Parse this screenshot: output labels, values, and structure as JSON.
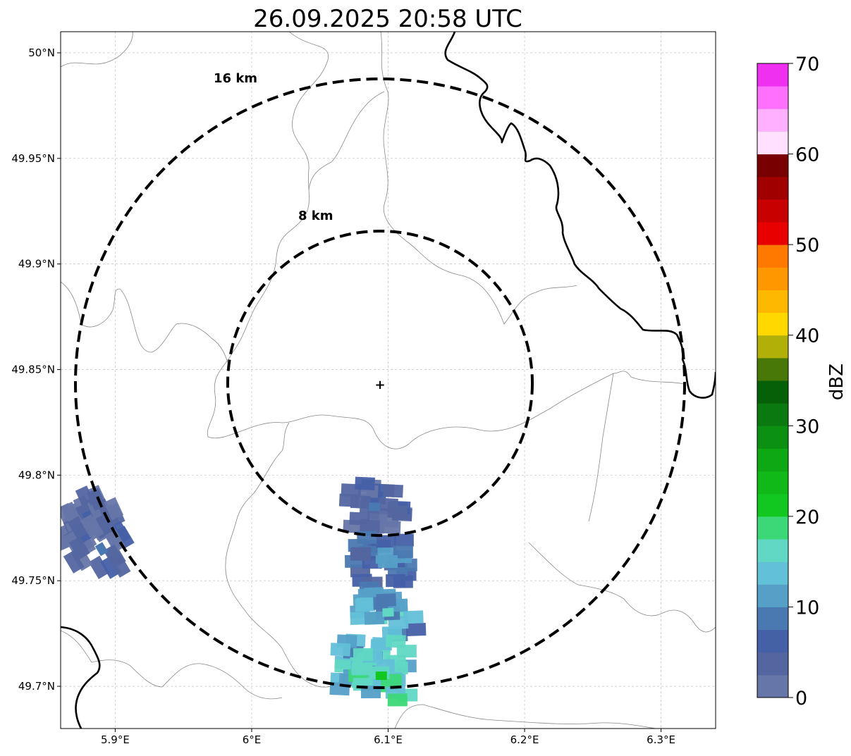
{
  "title": "26.09.2025 20:58 UTC",
  "map": {
    "lon_range": [
      5.86,
      6.34
    ],
    "lat_range": [
      49.68,
      50.01
    ],
    "lon_ticks": [
      {
        "value": 5.9,
        "label": "5.9°E"
      },
      {
        "value": 6.0,
        "label": "6°E"
      },
      {
        "value": 6.1,
        "label": "6.1°E"
      },
      {
        "value": 6.2,
        "label": "6.2°E"
      },
      {
        "value": 6.3,
        "label": "6.3°E"
      }
    ],
    "lat_ticks": [
      {
        "value": 50.0,
        "label": "50°N"
      },
      {
        "value": 49.95,
        "label": "49.95°N"
      },
      {
        "value": 49.9,
        "label": "49.9°N"
      },
      {
        "value": 49.85,
        "label": "49.85°N"
      },
      {
        "value": 49.8,
        "label": "49.8°N"
      },
      {
        "value": 49.75,
        "label": "49.75°N"
      },
      {
        "value": 49.7,
        "label": "49.7°N"
      }
    ],
    "gridlines": true,
    "radar_site": {
      "lon": 6.094,
      "lat": 49.843
    },
    "range_rings": [
      {
        "radius_km": 8,
        "label": "8 km"
      },
      {
        "radius_km": 16,
        "label": "16 km"
      }
    ]
  },
  "colorbar": {
    "label": "dBZ",
    "min": 0,
    "max": 70,
    "tick_values": [
      0,
      10,
      20,
      30,
      40,
      50,
      60,
      70
    ],
    "tick_labels": [
      "0",
      "10",
      "20",
      "30",
      "40",
      "50",
      "60",
      "70"
    ],
    "colors": [
      "#6676a8",
      "#5366a0",
      "#4460a6",
      "#4a78b0",
      "#56a0c8",
      "#62c0d8",
      "#60d8c4",
      "#3cd878",
      "#12c820",
      "#10b818",
      "#0ea814",
      "#0c9012",
      "#0a7a10",
      "#066008",
      "#487808",
      "#b0b008",
      "#ffd800",
      "#ffb800",
      "#ff9800",
      "#ff7800",
      "#e80000",
      "#c80000",
      "#a00000",
      "#780000",
      "#ffe0ff",
      "#ffb0ff",
      "#ff70ff",
      "#f030f0"
    ]
  },
  "echoes_dbz": [
    {
      "lon": 5.88,
      "lat": 49.78,
      "dbz": 6
    },
    {
      "lon": 5.89,
      "lat": 49.765,
      "dbz": 8
    },
    {
      "lon": 6.09,
      "lat": 49.785,
      "dbz": 8
    },
    {
      "lon": 6.095,
      "lat": 49.76,
      "dbz": 12
    },
    {
      "lon": 6.1,
      "lat": 49.735,
      "dbz": 16
    },
    {
      "lon": 6.085,
      "lat": 49.71,
      "dbz": 18
    },
    {
      "lon": 6.095,
      "lat": 49.705,
      "dbz": 20
    }
  ]
}
